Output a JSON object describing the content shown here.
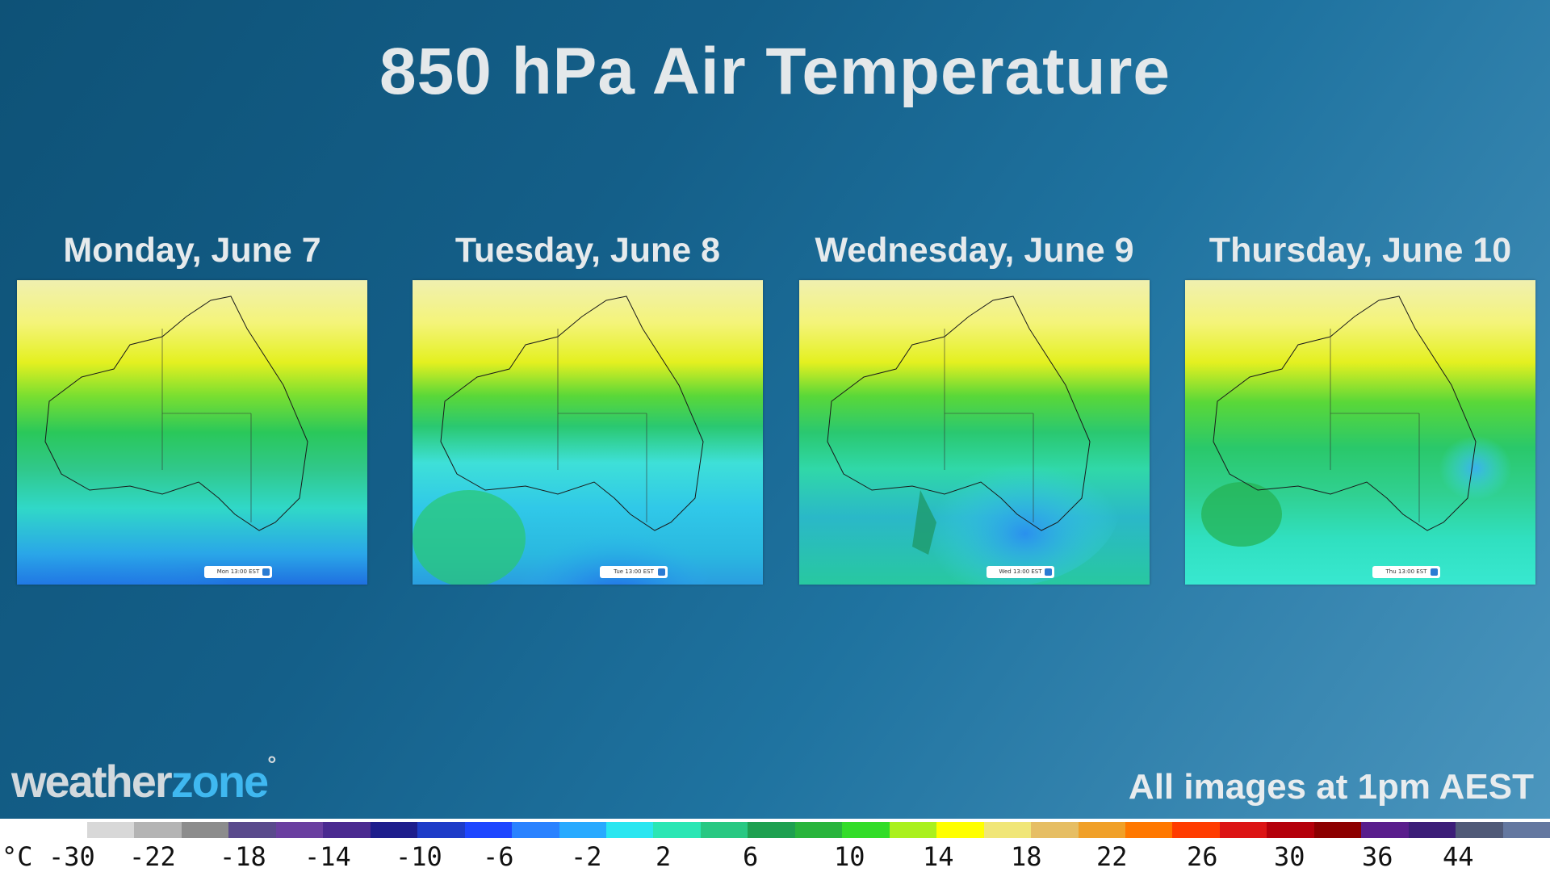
{
  "title": "850 hPa Air Temperature",
  "panels": [
    {
      "day": "Monday, June 7",
      "stamp": "Mon 13:00 EST"
    },
    {
      "day": "Tuesday, June 8",
      "stamp": "Tue 13:00 EST"
    },
    {
      "day": "Wednesday, June 9",
      "stamp": "Wed 13:00 EST"
    },
    {
      "day": "Thursday, June 10",
      "stamp": "Thu 13:00 EST"
    }
  ],
  "logo": {
    "part1": "weather",
    "part2": "zone",
    "mark": "°"
  },
  "note": "All images at 1pm AEST",
  "legend": {
    "unit": "°C",
    "labels": [
      "-30",
      "-22",
      "-18",
      "-14",
      "-10",
      "-6",
      "-2",
      "2",
      "6",
      "10",
      "14",
      "18",
      "22",
      "26",
      "30",
      "36",
      "44"
    ],
    "colors": [
      "#d8d8d8",
      "#b4b4b4",
      "#8c8c8c",
      "#5a4a8c",
      "#6a3fa0",
      "#4a2a90",
      "#1e1e8c",
      "#1e3cc8",
      "#1e46ff",
      "#2a82ff",
      "#28aaff",
      "#2ae6f0",
      "#2ae6b4",
      "#28c882",
      "#1ea050",
      "#28b43c",
      "#32dc28",
      "#aaf01e",
      "#ffff00",
      "#f0e678",
      "#e6be64",
      "#f0a028",
      "#ff7800",
      "#ff3c00",
      "#dc1414",
      "#b4000a",
      "#8c0000",
      "#5a1e8c",
      "#3c1e78",
      "#505a78",
      "#6478a0"
    ]
  }
}
